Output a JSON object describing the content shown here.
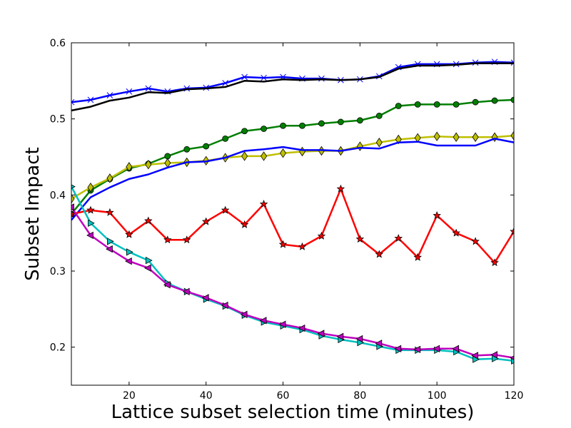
{
  "chart_data": {
    "type": "line",
    "title": "",
    "xlabel": "Lattice subset selection time (minutes)",
    "ylabel": "Subset Impact",
    "xlim": [
      5,
      120
    ],
    "ylim": [
      0.15,
      0.6
    ],
    "xticks": [
      20,
      40,
      60,
      80,
      100,
      120
    ],
    "yticks": [
      0.2,
      0.3,
      0.4,
      0.5,
      0.6
    ],
    "xtick_labels": [
      "20",
      "40",
      "60",
      "80",
      "100",
      "120"
    ],
    "ytick_labels": [
      "0.2",
      "0.3",
      "0.4",
      "0.5",
      "0.6"
    ],
    "grid": false,
    "x": [
      5,
      10,
      15,
      20,
      25,
      30,
      35,
      40,
      45,
      50,
      55,
      60,
      65,
      70,
      75,
      80,
      85,
      90,
      95,
      100,
      105,
      110,
      115,
      120
    ],
    "series": [
      {
        "color": "#0000ff",
        "marker": "x",
        "values": [
          0.522,
          0.525,
          0.531,
          0.536,
          0.54,
          0.536,
          0.54,
          0.541,
          0.547,
          0.555,
          0.554,
          0.555,
          0.553,
          0.553,
          0.551,
          0.552,
          0.556,
          0.568,
          0.572,
          0.572,
          0.572,
          0.574,
          0.575,
          0.574
        ]
      },
      {
        "color": "#000000",
        "marker": "",
        "values": [
          0.511,
          0.516,
          0.524,
          0.528,
          0.535,
          0.534,
          0.539,
          0.54,
          0.542,
          0.55,
          0.549,
          0.552,
          0.551,
          0.552,
          0.551,
          0.552,
          0.555,
          0.566,
          0.57,
          0.57,
          0.571,
          0.573,
          0.573,
          0.573
        ]
      },
      {
        "color": "#007f00",
        "marker": "o",
        "values": [
          0.375,
          0.406,
          0.421,
          0.435,
          0.441,
          0.451,
          0.46,
          0.464,
          0.474,
          0.484,
          0.487,
          0.491,
          0.491,
          0.494,
          0.496,
          0.498,
          0.504,
          0.517,
          0.519,
          0.519,
          0.519,
          0.522,
          0.524,
          0.525
        ]
      },
      {
        "color": "#bfbf00",
        "marker": "d",
        "values": [
          0.395,
          0.41,
          0.422,
          0.437,
          0.44,
          0.442,
          0.443,
          0.445,
          0.449,
          0.451,
          0.451,
          0.455,
          0.457,
          0.458,
          0.458,
          0.464,
          0.469,
          0.473,
          0.475,
          0.477,
          0.476,
          0.476,
          0.476,
          0.478
        ]
      },
      {
        "color": "#0000ff",
        "marker": "",
        "values": [
          0.367,
          0.397,
          0.41,
          0.421,
          0.427,
          0.436,
          0.443,
          0.444,
          0.449,
          0.458,
          0.46,
          0.463,
          0.459,
          0.459,
          0.458,
          0.462,
          0.461,
          0.469,
          0.47,
          0.465,
          0.465,
          0.465,
          0.474,
          0.469
        ]
      },
      {
        "color": "#ff0000",
        "marker": "*",
        "values": [
          0.375,
          0.38,
          0.377,
          0.348,
          0.366,
          0.341,
          0.341,
          0.365,
          0.38,
          0.361,
          0.388,
          0.335,
          0.332,
          0.346,
          0.408,
          0.342,
          0.322,
          0.343,
          0.318,
          0.373,
          0.35,
          0.339,
          0.311,
          0.352
        ]
      },
      {
        "color": "#00bfbf",
        "marker": ">",
        "values": [
          0.411,
          0.363,
          0.339,
          0.325,
          0.314,
          0.284,
          0.273,
          0.263,
          0.254,
          0.242,
          0.233,
          0.228,
          0.223,
          0.215,
          0.21,
          0.206,
          0.201,
          0.196,
          0.196,
          0.196,
          0.194,
          0.184,
          0.185,
          0.182
        ]
      },
      {
        "color": "#bf00bf",
        "marker": "<",
        "values": [
          0.384,
          0.347,
          0.329,
          0.313,
          0.304,
          0.282,
          0.273,
          0.265,
          0.255,
          0.243,
          0.235,
          0.23,
          0.225,
          0.218,
          0.214,
          0.211,
          0.205,
          0.198,
          0.197,
          0.198,
          0.198,
          0.189,
          0.19,
          0.186
        ]
      }
    ]
  }
}
